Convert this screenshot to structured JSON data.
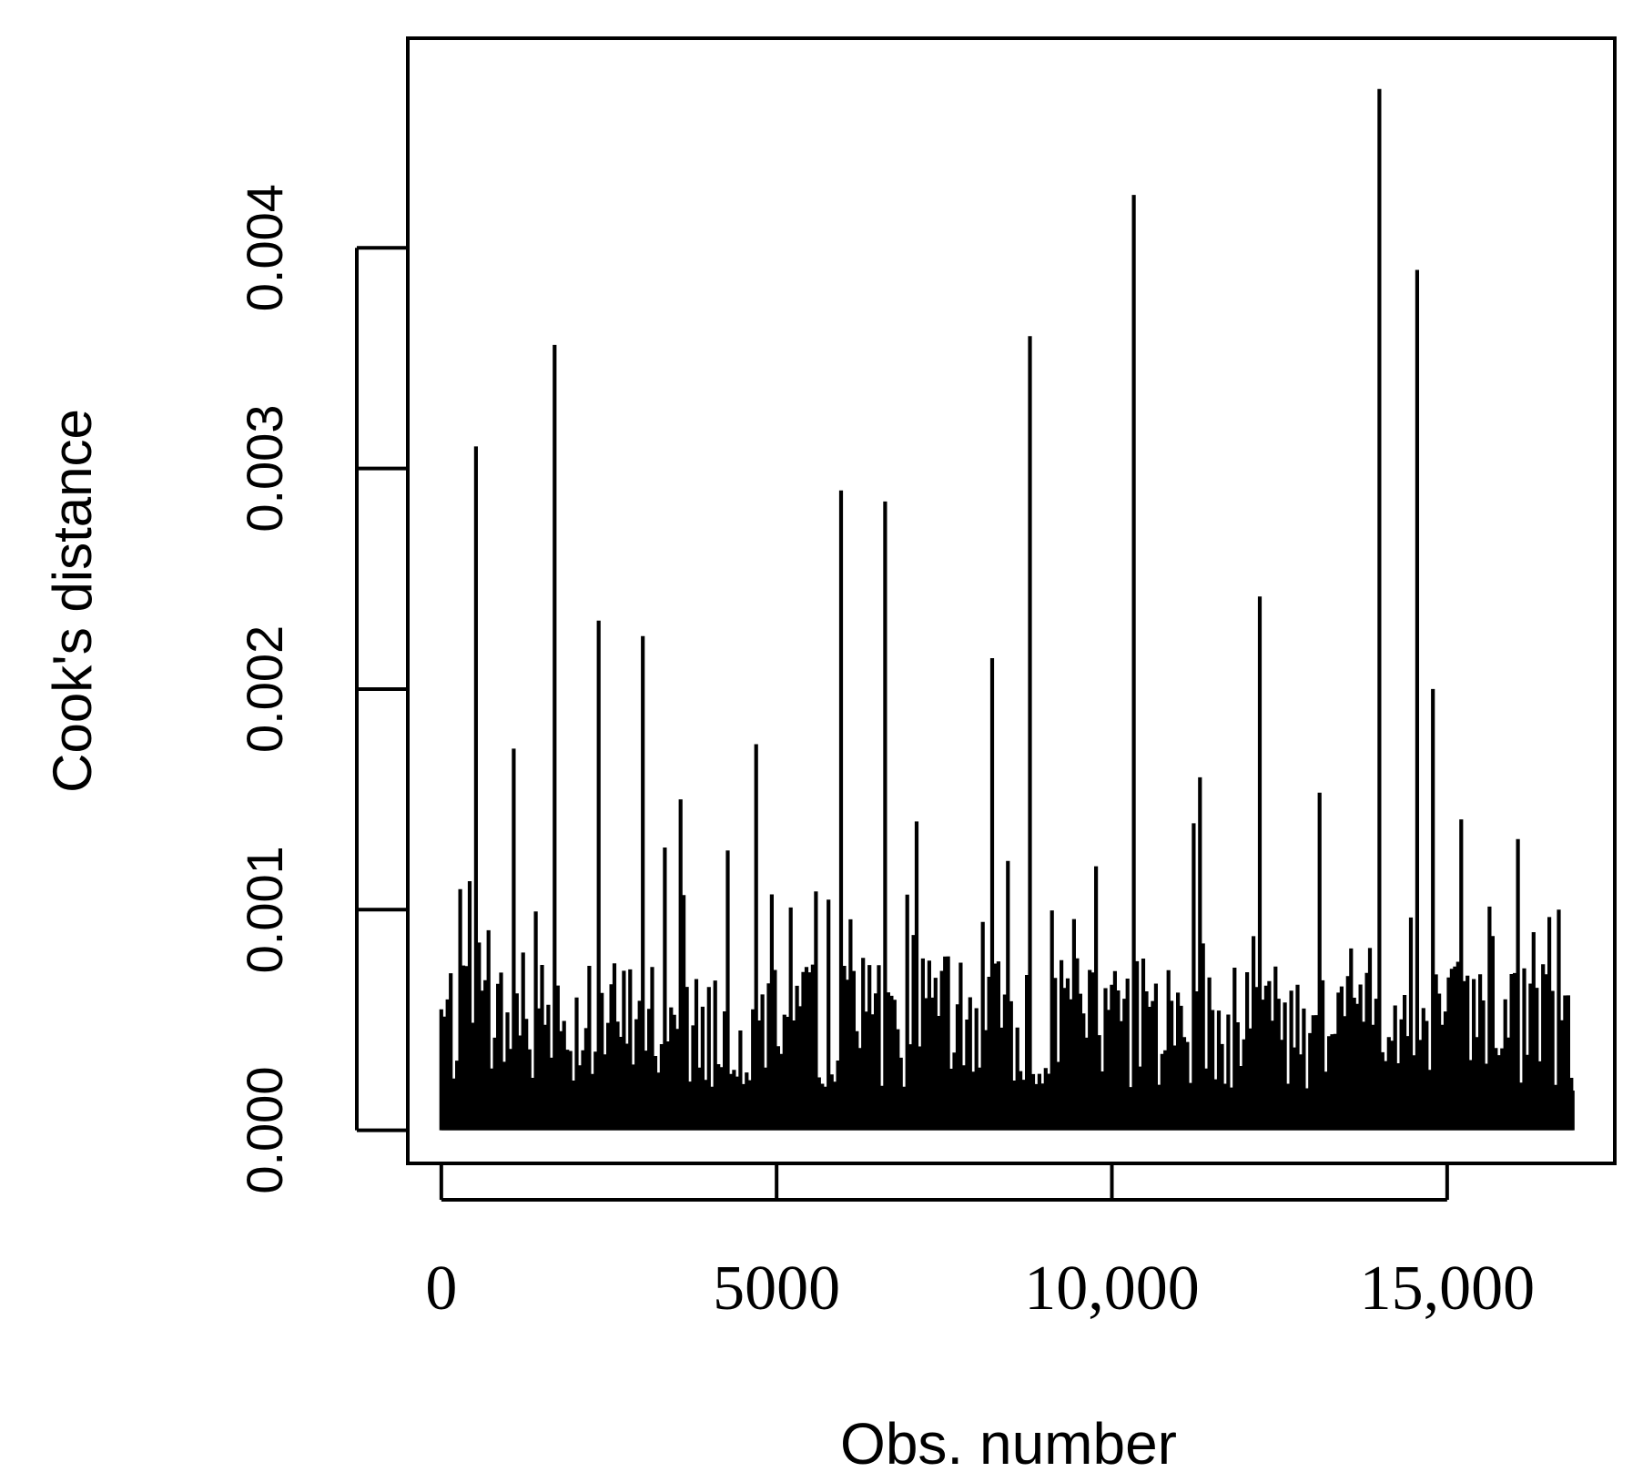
{
  "chart_data": {
    "type": "bar",
    "xlabel": "Obs. number",
    "ylabel": "Cook's distance",
    "xlim": [
      -500,
      17500
    ],
    "ylim": [
      -0.00015,
      0.00495
    ],
    "xticks": [
      0,
      5000,
      10000,
      15000
    ],
    "xtick_labels": [
      "0",
      "5000",
      "10,000",
      "15,000"
    ],
    "yticks": [
      0,
      0.001,
      0.002,
      0.003,
      0.004
    ],
    "ytick_labels": [
      "0.000",
      "0.001",
      "0.002",
      "0.003",
      "0.004"
    ],
    "grid": false,
    "colors": {
      "bars": "#000000",
      "axes": "#000000",
      "background": "#ffffff"
    },
    "spikes": [
      {
        "x": 500,
        "y": 0.0031
      },
      {
        "x": 1100,
        "y": 0.00173
      },
      {
        "x": 1700,
        "y": 0.00356
      },
      {
        "x": 2350,
        "y": 0.00231
      },
      {
        "x": 3000,
        "y": 0.00224
      },
      {
        "x": 3550,
        "y": 0.0015
      },
      {
        "x": 4700,
        "y": 0.00175
      },
      {
        "x": 5950,
        "y": 0.0029
      },
      {
        "x": 6600,
        "y": 0.00285
      },
      {
        "x": 7100,
        "y": 0.0014
      },
      {
        "x": 8200,
        "y": 0.00214
      },
      {
        "x": 8800,
        "y": 0.0036
      },
      {
        "x": 10350,
        "y": 0.00424
      },
      {
        "x": 11300,
        "y": 0.0016
      },
      {
        "x": 12200,
        "y": 0.00242
      },
      {
        "x": 13100,
        "y": 0.00153
      },
      {
        "x": 14000,
        "y": 0.00472
      },
      {
        "x": 14550,
        "y": 0.0039
      },
      {
        "x": 14800,
        "y": 0.002
      },
      {
        "x": 16050,
        "y": 0.00132
      },
      {
        "x": 16650,
        "y": 0.001
      }
    ],
    "baseline_level_approx": 0.0004,
    "n_obs_approx": 16900
  }
}
